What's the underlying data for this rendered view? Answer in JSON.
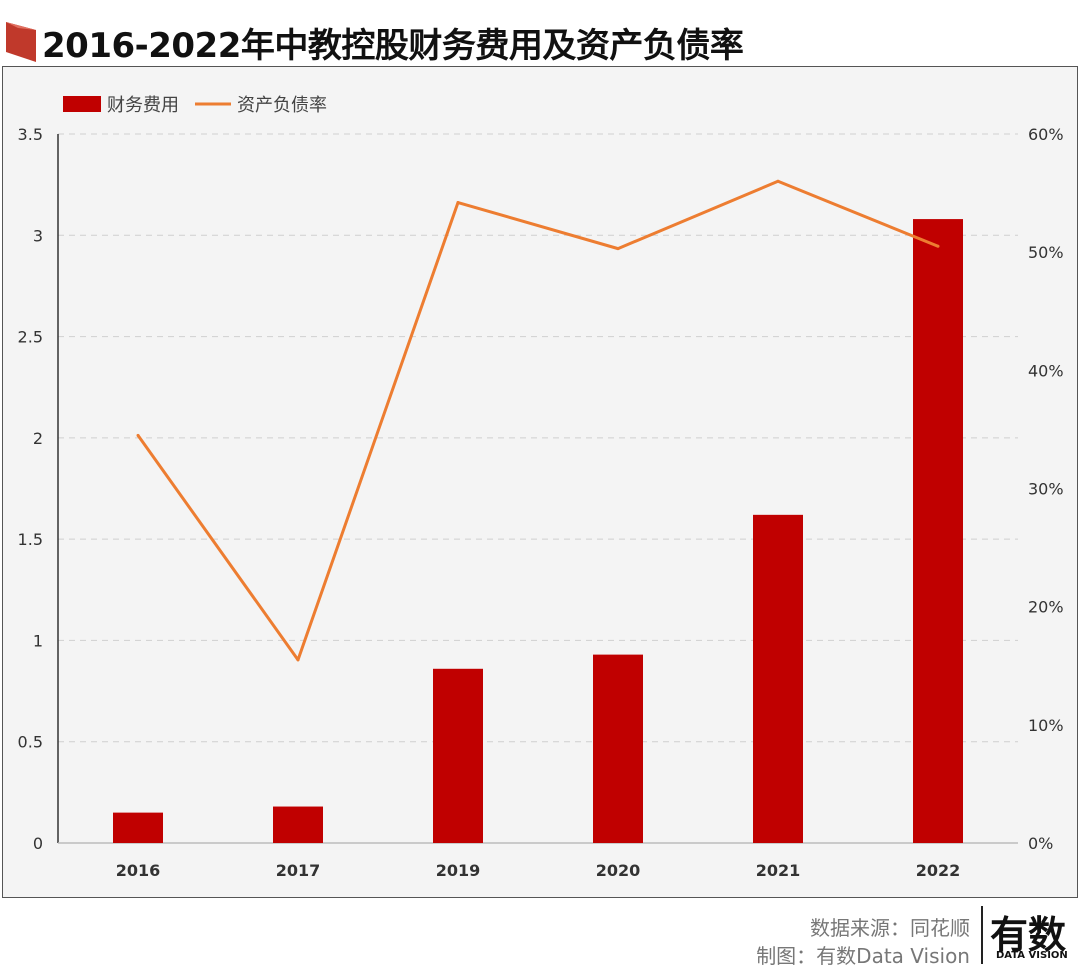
{
  "title": "2016-2022年中教控股财务费用及资产负债率",
  "colors": {
    "bar": "#c00000",
    "line": "#ed7d31",
    "accent": "#c0392b"
  },
  "footer": {
    "source": "数据来源：同花顺",
    "made_by": "制图：有数Data Vision",
    "logo_main": "有数",
    "logo_sub": "DATA VISION"
  },
  "chart_data": {
    "type": "bar",
    "title": "2016-2022年中教控股财务费用及资产负债率",
    "categories": [
      "2016",
      "2017",
      "2019",
      "2020",
      "2021",
      "2022"
    ],
    "series": [
      {
        "name": "财务费用",
        "type": "bar",
        "axis": "left",
        "values": [
          0.15,
          0.18,
          0.86,
          0.93,
          1.62,
          3.08
        ]
      },
      {
        "name": "资产负债率",
        "type": "line",
        "axis": "right",
        "values": [
          34.5,
          15.5,
          54.2,
          50.3,
          56.0,
          50.5
        ]
      }
    ],
    "y_left": {
      "range": [
        0,
        3.5
      ],
      "ticks": [
        "0",
        "0.5",
        "1",
        "1.5",
        "2",
        "2.5",
        "3",
        "3.5"
      ]
    },
    "y_right": {
      "range": [
        0,
        60
      ],
      "ticks": [
        "0%",
        "10%",
        "20%",
        "30%",
        "40%",
        "50%",
        "60%"
      ]
    },
    "grid": true,
    "legend_position": "top-left"
  }
}
